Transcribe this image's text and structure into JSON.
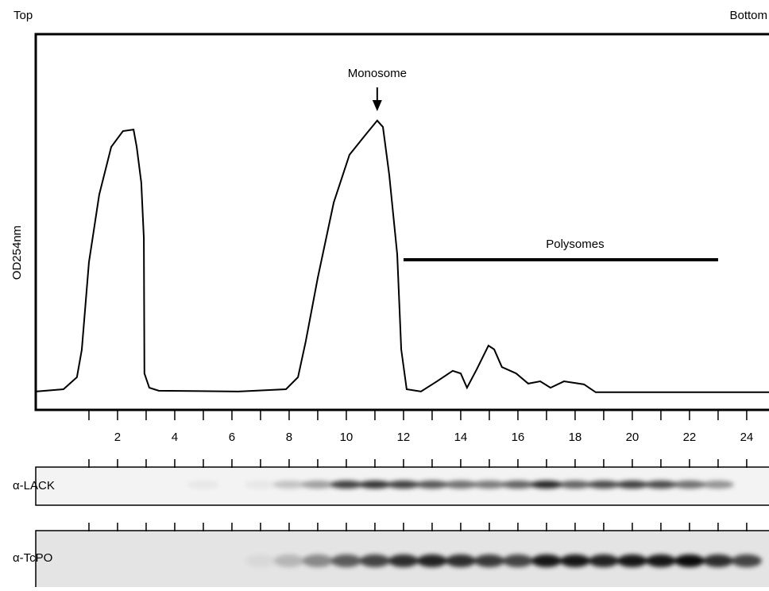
{
  "chart_data": {
    "type": "line",
    "top_label": "Top",
    "bottom_label": "Bottom",
    "ylabel": "OD254nm",
    "xlim": [
      -0.86,
      24.78
    ],
    "ylim": [
      0,
      100
    ],
    "xticks": [
      2,
      4,
      6,
      8,
      10,
      12,
      14,
      16,
      18,
      20,
      22,
      24
    ],
    "series": [
      {
        "color": "#000000",
        "x": [
          -0.86,
          0.11,
          0.58,
          0.75,
          1.0,
          1.36,
          1.78,
          2.19,
          2.56,
          2.67,
          2.83,
          2.92,
          2.94,
          3.11,
          3.44,
          6.22,
          7.89,
          8.31,
          8.58,
          9.0,
          9.56,
          10.11,
          10.67,
          11.08,
          11.28,
          11.5,
          11.78,
          11.92,
          12.11,
          12.61,
          13.17,
          13.72,
          14.0,
          14.22,
          14.56,
          14.97,
          15.17,
          15.44,
          15.94,
          16.36,
          16.78,
          17.14,
          17.61,
          18.31,
          18.72,
          24.78
        ],
        "values": [
          4.9,
          5.5,
          8.7,
          16,
          39.3,
          57.3,
          70,
          74.2,
          74.6,
          70,
          60.5,
          45.7,
          9.7,
          5.9,
          5.1,
          4.9,
          5.5,
          8.7,
          18.2,
          35.1,
          55.2,
          67.9,
          73.2,
          77,
          75.3,
          62.6,
          41.4,
          16.1,
          5.5,
          4.9,
          7.6,
          10.4,
          9.7,
          5.9,
          10.8,
          17.1,
          16.1,
          11.4,
          9.7,
          7.0,
          7.6,
          5.9,
          7.6,
          6.8,
          4.7,
          4.7
        ]
      }
    ],
    "monosome": {
      "text": "Monosome",
      "x": 11.08
    },
    "polysomes": {
      "text": "Polysomes",
      "x_range": [
        12,
        23
      ]
    },
    "blots": [
      "α-LACK",
      "α-TcPO"
    ]
  }
}
